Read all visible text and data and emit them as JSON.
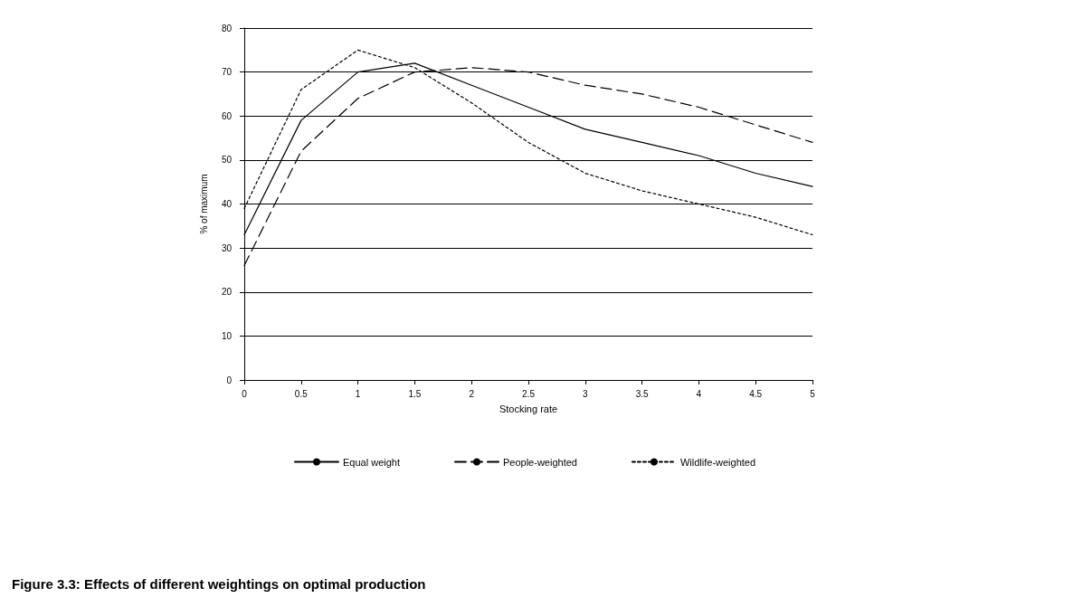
{
  "chart_data": {
    "type": "line",
    "title": "Figure 3.3: Effects of different weightings on optimal production",
    "xlabel": "Stocking rate",
    "ylabel": "% of maximum",
    "x": [
      0,
      0.5,
      1,
      1.5,
      2,
      2.5,
      3,
      3.5,
      4,
      4.5,
      5
    ],
    "series": [
      {
        "name": "Equal weight",
        "color": "#000000",
        "line_style": "solid",
        "values": [
          33,
          59,
          70,
          72,
          67,
          62,
          57,
          54,
          51,
          47,
          44
        ]
      },
      {
        "name": "People-weighted",
        "color": "#000000",
        "line_style": "dashed",
        "values": [
          26,
          52,
          64,
          70,
          71,
          70,
          67,
          65,
          62,
          58,
          54
        ]
      },
      {
        "name": "Wildlife-weighted",
        "color": "#000000",
        "line_style": "dotted",
        "values": [
          39,
          66,
          75,
          71,
          63,
          54,
          47,
          43,
          40,
          37,
          33
        ]
      }
    ],
    "xlim": [
      0,
      5
    ],
    "xticks": [
      0,
      0.5,
      1,
      1.5,
      2,
      2.5,
      3,
      3.5,
      4,
      4.5,
      5
    ],
    "ylim": [
      0,
      80
    ],
    "yticks": [
      0,
      10,
      20,
      30,
      40,
      50,
      60,
      70,
      80
    ],
    "grid": "y",
    "legend": "bottom",
    "marker": "none"
  }
}
